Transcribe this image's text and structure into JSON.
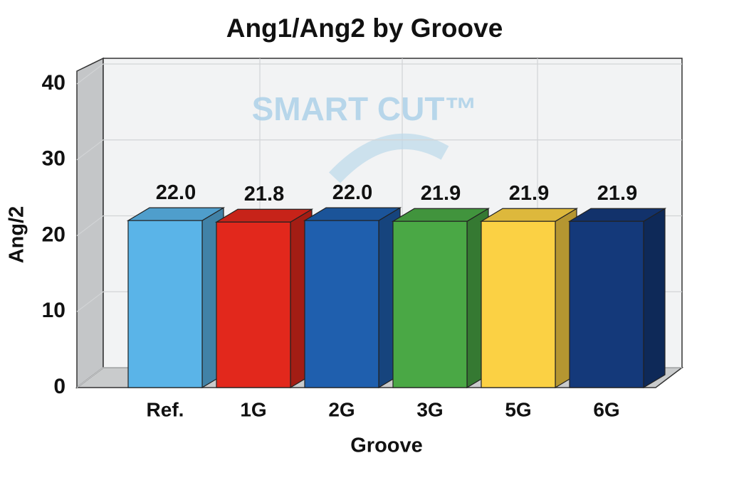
{
  "chart_data": {
    "type": "bar3d",
    "title": "Ang1/Ang2 by Groove",
    "watermark": "SMART CUT™",
    "xlabel": "Groove",
    "ylabel": "Ang/2",
    "categories": [
      "Ref.",
      "1G",
      "2G",
      "3G",
      "5G",
      "6G"
    ],
    "values": [
      22.0,
      21.8,
      22.0,
      21.9,
      21.9,
      21.9
    ],
    "value_labels": [
      "22.0",
      "21.8",
      "22.0",
      "21.9",
      "21.9",
      "21.9"
    ],
    "colors": [
      "#5ab4e8",
      "#e2281c",
      "#1f5fae",
      "#4aa845",
      "#fbd144",
      "#14397a"
    ],
    "ylim": [
      0,
      40
    ],
    "yticks": [
      0,
      10,
      20,
      30,
      40
    ],
    "grid": true
  }
}
